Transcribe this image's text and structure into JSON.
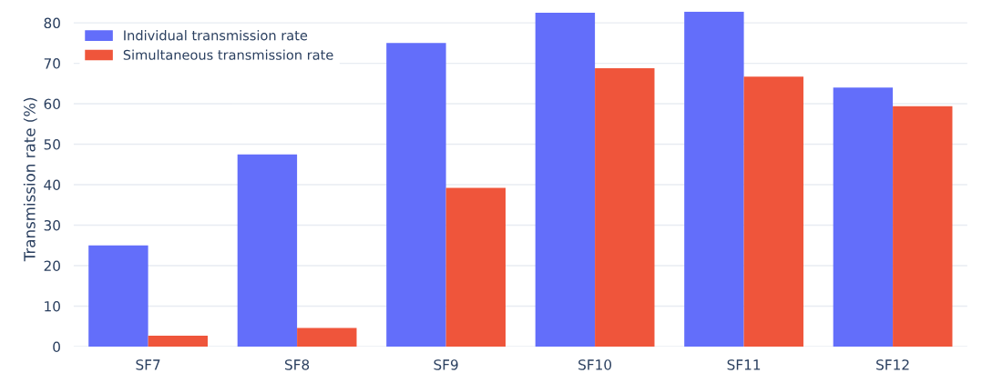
{
  "chart_data": {
    "type": "bar",
    "ylabel": "Transmission rate (%)",
    "categories": [
      "SF7",
      "SF8",
      "SF9",
      "SF10",
      "SF11",
      "SF12"
    ],
    "series": [
      {
        "name": "Individual transmission rate",
        "color": "#636efa",
        "values": [
          25,
          47.5,
          75,
          82.5,
          82.8,
          64
        ]
      },
      {
        "name": "Simultaneous transmission rate",
        "color": "#ef553b",
        "values": [
          2.7,
          4.6,
          39.2,
          68.8,
          66.7,
          59.4
        ]
      }
    ],
    "ylim": [
      0,
      82.8
    ],
    "yticks": [
      0,
      10,
      20,
      30,
      40,
      50,
      60,
      70,
      80
    ],
    "grid": "y",
    "legend": "top left"
  }
}
